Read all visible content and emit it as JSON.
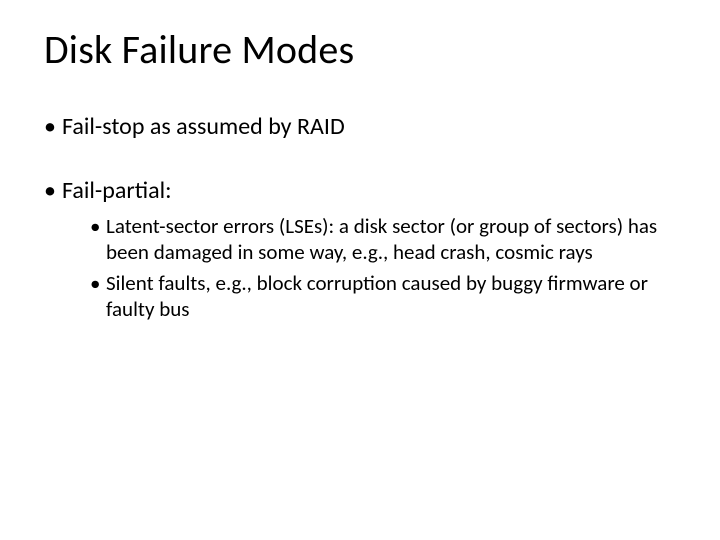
{
  "slide": {
    "title": "Disk Failure Modes",
    "title_fontsize": 40,
    "title_color": "#000000",
    "background_color": "#ffffff",
    "bullets": [
      {
        "text": "Fail-stop as assumed by RAID",
        "fontsize": 24,
        "children": []
      },
      {
        "text": "Fail-partial:",
        "fontsize": 24,
        "children": [
          {
            "text": "Latent-sector errors (LSEs): a disk sector (or group of sectors) has been damaged in some way, e.g., head crash, cosmic rays",
            "fontsize": 21
          },
          {
            "text": "Silent faults, e.g., block corruption caused by buggy firmware or faulty bus",
            "fontsize": 21
          }
        ]
      }
    ]
  }
}
